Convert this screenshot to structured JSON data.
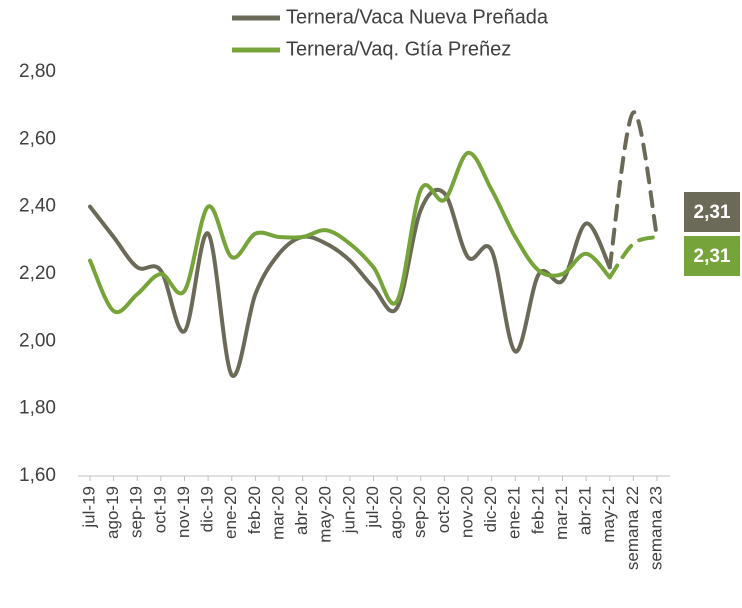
{
  "chart_data": {
    "type": "line",
    "categories": [
      "jul-19",
      "ago-19",
      "sep-19",
      "oct-19",
      "nov-19",
      "dic-19",
      "ene-20",
      "feb-20",
      "mar-20",
      "abr-20",
      "may-20",
      "jun-20",
      "jul-20",
      "ago-20",
      "sep-20",
      "oct-20",
      "nov-20",
      "dic-20",
      "ene-21",
      "feb-21",
      "mar-21",
      "abr-21",
      "may-21",
      "semana 22",
      "semana 23"
    ],
    "series": [
      {
        "name": "Ternera/Vaca Nueva Preñada",
        "color": "#6b6a58",
        "values": [
          2.4,
          2.31,
          2.22,
          2.21,
          2.03,
          2.32,
          1.9,
          2.14,
          2.26,
          2.31,
          2.29,
          2.24,
          2.16,
          2.1,
          2.39,
          2.44,
          2.25,
          2.27,
          1.97,
          2.2,
          2.18,
          2.35,
          2.22,
          2.68,
          2.31
        ],
        "value_labels": [
          null,
          null,
          null,
          null,
          null,
          null,
          null,
          null,
          null,
          null,
          null,
          null,
          null,
          null,
          null,
          null,
          null,
          null,
          null,
          null,
          null,
          null,
          null,
          null,
          "2,31"
        ]
      },
      {
        "name": "Ternera/Vaq. Gtía Preñez",
        "color": "#77a43a",
        "values": [
          2.24,
          2.09,
          2.14,
          2.2,
          2.15,
          2.4,
          2.25,
          2.32,
          2.31,
          2.31,
          2.33,
          2.29,
          2.22,
          2.12,
          2.45,
          2.42,
          2.56,
          2.45,
          2.31,
          2.21,
          2.2,
          2.26,
          2.19,
          2.29,
          2.31
        ],
        "value_labels": [
          null,
          null,
          null,
          null,
          null,
          null,
          null,
          null,
          null,
          null,
          null,
          null,
          null,
          null,
          null,
          null,
          null,
          null,
          null,
          null,
          null,
          null,
          null,
          null,
          "2,31"
        ]
      }
    ],
    "dash_from": "may-21",
    "ylim": [
      1.6,
      2.8
    ],
    "yticks": [
      {
        "value": 1.6,
        "label": "1,60"
      },
      {
        "value": 1.8,
        "label": "1,80"
      },
      {
        "value": 2.0,
        "label": "2,00"
      },
      {
        "value": 2.2,
        "label": "2,20"
      },
      {
        "value": 2.4,
        "label": "2,40"
      },
      {
        "value": 2.6,
        "label": "2,60"
      },
      {
        "value": 2.8,
        "label": "2,80"
      }
    ],
    "grid": false,
    "legend": "top"
  }
}
